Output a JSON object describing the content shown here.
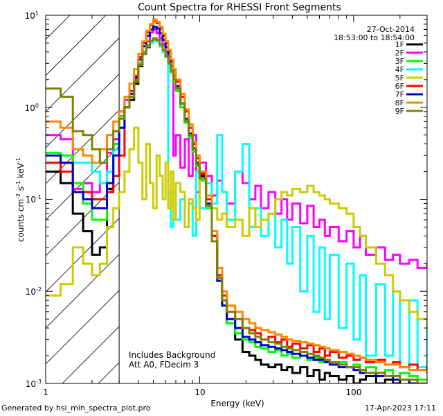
{
  "chart_data": {
    "type": "line",
    "drawstyle": "steps",
    "title": "Count Spectra for RHESSI Front Segments",
    "xlabel": "Energy (keV)",
    "ylabel": "counts cm",
    "ylabel_sup1": "-2",
    "ylabel_mid": " s",
    "ylabel_sup2": "-1",
    "ylabel_end": " keV",
    "ylabel_sup3": "-1",
    "xscale": "log",
    "yscale": "log",
    "xlim": [
      1,
      300
    ],
    "ylim": [
      0.001,
      10
    ],
    "x_tick_labels": [
      "1",
      "10",
      "100"
    ],
    "y_tick_labels": [
      {
        "base": "10",
        "exp": "1"
      },
      {
        "base": "10",
        "exp": "0"
      },
      {
        "base": "10",
        "exp": "-1"
      },
      {
        "base": "10",
        "exp": "-2"
      },
      {
        "base": "10",
        "exp": "-3"
      }
    ],
    "hatched_region_max_kev": 3,
    "date": "27-Oct-2014",
    "time_range": "18:53:00 to 18:54:00",
    "annotation_line1": "Includes Background",
    "annotation_line2": "Att A0, FDecim 3",
    "x": [
      1.0,
      1.25,
      1.5,
      1.75,
      2.0,
      2.25,
      2.5,
      2.75,
      3.0,
      3.25,
      3.5,
      3.75,
      4.0,
      4.25,
      4.5,
      4.75,
      5.0,
      5.25,
      5.5,
      5.75,
      6.0,
      6.25,
      6.5,
      6.75,
      7.0,
      7.5,
      8.0,
      8.5,
      9.0,
      9.5,
      10.0,
      11.0,
      12.0,
      13.0,
      14.0,
      15.0,
      17.0,
      19.0,
      21.0,
      23.0,
      25.0,
      28.0,
      31.0,
      34.0,
      37.0,
      40.0,
      45.0,
      50.0,
      55.0,
      60.0,
      65.0,
      70.0,
      80.0,
      90.0,
      100.0,
      110.0,
      120.0,
      140.0,
      160.0,
      180.0,
      200.0,
      230.0,
      260.0,
      300.0
    ],
    "series": [
      {
        "name": "1F",
        "color": "#000000",
        "values": [
          0.2,
          0.15,
          0.07,
          0.045,
          0.025,
          0.03,
          0.13,
          0.4,
          0.8,
          1.0,
          1.2,
          1.8,
          2.8,
          3.8,
          4.5,
          5.0,
          5.4,
          5.2,
          4.6,
          4.0,
          3.6,
          3.0,
          2.5,
          2.0,
          1.6,
          1.1,
          0.7,
          0.5,
          0.35,
          0.24,
          0.18,
          0.09,
          0.04,
          0.015,
          0.008,
          0.0045,
          0.003,
          0.0022,
          0.002,
          0.0018,
          0.0016,
          0.0015,
          0.0016,
          0.0014,
          0.0015,
          0.0013,
          0.0015,
          0.0012,
          0.0014,
          0.0011,
          0.0013,
          0.0012,
          0.0011,
          0.0012,
          0.001,
          0.0011,
          0.0012,
          0.001,
          0.0011,
          0.001,
          0.0011,
          0.001,
          0.001,
          0.001
        ]
      },
      {
        "name": "2F",
        "color": "#ff00ff",
        "values": [
          0.5,
          0.45,
          0.13,
          0.15,
          0.12,
          0.15,
          0.32,
          0.45,
          0.9,
          1.2,
          1.5,
          2.0,
          3.0,
          4.0,
          5.2,
          6.5,
          7.0,
          6.4,
          5.6,
          4.8,
          4.0,
          3.3,
          2.5,
          0.3,
          0.5,
          0.22,
          0.45,
          0.18,
          0.5,
          0.12,
          0.25,
          0.18,
          0.11,
          0.16,
          0.12,
          0.09,
          0.2,
          0.15,
          0.1,
          0.14,
          0.08,
          0.12,
          0.07,
          0.1,
          0.06,
          0.09,
          0.055,
          0.085,
          0.05,
          0.06,
          0.04,
          0.05,
          0.035,
          0.045,
          0.03,
          0.04,
          0.025,
          0.03,
          0.022,
          0.025,
          0.02,
          0.022,
          0.018,
          0.02
        ]
      },
      {
        "name": "3F",
        "color": "#00ff00",
        "values": [
          0.32,
          0.3,
          0.15,
          0.09,
          0.06,
          0.06,
          0.2,
          0.4,
          0.8,
          1.0,
          1.3,
          1.9,
          3.0,
          3.9,
          4.6,
          5.1,
          5.5,
          5.3,
          4.7,
          4.1,
          3.5,
          2.9,
          2.4,
          1.9,
          1.5,
          1.0,
          0.68,
          0.47,
          0.33,
          0.23,
          0.16,
          0.08,
          0.035,
          0.014,
          0.007,
          0.0045,
          0.0035,
          0.003,
          0.0028,
          0.0025,
          0.0024,
          0.0022,
          0.0023,
          0.002,
          0.0021,
          0.0019,
          0.002,
          0.0018,
          0.0019,
          0.0017,
          0.0018,
          0.0016,
          0.0017,
          0.0015,
          0.0016,
          0.0014,
          0.0015,
          0.0013,
          0.0014,
          0.0012,
          0.0013,
          0.0012,
          0.0011,
          0.0011
        ]
      },
      {
        "name": "4F",
        "color": "#00ffff",
        "values": [
          0.25,
          0.25,
          0.25,
          0.25,
          0.2,
          0.15,
          0.2,
          0.35,
          0.6,
          1.0,
          1.3,
          1.9,
          2.9,
          3.8,
          4.6,
          5.0,
          5.4,
          5.2,
          4.6,
          4.0,
          3.5,
          0.12,
          0.05,
          0.12,
          0.06,
          0.1,
          0.05,
          0.09,
          0.04,
          0.2,
          0.08,
          0.15,
          0.09,
          0.5,
          0.12,
          0.06,
          0.2,
          0.4,
          0.05,
          0.08,
          0.04,
          0.07,
          0.03,
          0.06,
          0.02,
          0.05,
          0.01,
          0.04,
          0.006,
          0.03,
          0.005,
          0.025,
          0.004,
          0.02,
          0.003,
          0.015,
          0.002,
          0.012,
          0.002,
          0.01,
          0.0015,
          0.008,
          0.0015,
          0.005
        ]
      },
      {
        "name": "5F",
        "color": "#cccc00",
        "values": [
          0.009,
          0.012,
          0.03,
          0.02,
          0.015,
          0.02,
          0.05,
          0.08,
          0.12,
          0.2,
          0.35,
          0.6,
          0.25,
          0.1,
          0.4,
          0.15,
          0.08,
          0.3,
          0.18,
          0.1,
          0.25,
          0.08,
          0.2,
          0.06,
          0.15,
          0.12,
          0.05,
          0.1,
          0.08,
          0.06,
          0.2,
          0.1,
          0.08,
          0.06,
          0.07,
          0.05,
          0.06,
          0.04,
          0.08,
          0.05,
          0.06,
          0.07,
          0.1,
          0.12,
          0.11,
          0.13,
          0.12,
          0.14,
          0.12,
          0.11,
          0.1,
          0.09,
          0.08,
          0.07,
          0.05,
          0.04,
          0.03,
          0.02,
          0.015,
          0.01,
          0.008,
          0.006,
          0.005,
          0.004
        ]
      },
      {
        "name": "6F",
        "color": "#ff0000",
        "values": [
          0.25,
          0.2,
          0.12,
          0.12,
          0.1,
          0.1,
          0.12,
          0.18,
          0.3,
          1.0,
          1.5,
          2.2,
          3.5,
          5.0,
          6.5,
          7.8,
          8.6,
          8.2,
          7.2,
          6.0,
          5.0,
          4.0,
          3.2,
          2.5,
          1.9,
          1.3,
          0.9,
          0.6,
          0.4,
          0.28,
          0.19,
          0.1,
          0.04,
          0.015,
          0.009,
          0.006,
          0.005,
          0.004,
          0.0038,
          0.0035,
          0.003,
          0.0032,
          0.0028,
          0.003,
          0.0025,
          0.0027,
          0.0024,
          0.0026,
          0.0022,
          0.0024,
          0.002,
          0.0022,
          0.0019,
          0.002,
          0.0018,
          0.0019,
          0.0017,
          0.0018,
          0.0016,
          0.0017,
          0.0015,
          0.0016,
          0.0014,
          0.0015
        ]
      },
      {
        "name": "7F",
        "color": "#0000cc",
        "values": [
          0.3,
          0.25,
          0.12,
          0.1,
          0.08,
          0.08,
          0.15,
          0.3,
          0.6,
          1.0,
          1.4,
          2.1,
          3.3,
          4.6,
          6.0,
          7.0,
          7.5,
          7.2,
          6.4,
          5.4,
          4.5,
          3.6,
          2.8,
          2.2,
          1.7,
          1.1,
          0.75,
          0.52,
          0.36,
          0.25,
          0.17,
          0.09,
          0.035,
          0.013,
          0.007,
          0.005,
          0.004,
          0.0032,
          0.003,
          0.0028,
          0.0026,
          0.0025,
          0.0024,
          0.0023,
          0.0022,
          0.0021,
          0.002,
          0.0019,
          0.0018,
          0.0018,
          0.0017,
          0.0016,
          0.0015,
          0.0015,
          0.0014,
          0.0013,
          0.0013,
          0.0012,
          0.0012,
          0.0011,
          0.0011,
          0.001,
          0.001,
          0.001
        ]
      },
      {
        "name": "8F",
        "color": "#ff8800",
        "values": [
          0.7,
          0.6,
          0.35,
          0.3,
          0.25,
          0.35,
          0.5,
          0.7,
          0.9,
          1.3,
          1.8,
          2.6,
          3.8,
          5.2,
          6.8,
          8.0,
          9.0,
          8.5,
          7.5,
          6.3,
          5.2,
          4.2,
          3.3,
          2.6,
          2.0,
          1.4,
          0.95,
          0.65,
          0.42,
          0.3,
          0.2,
          0.11,
          0.045,
          0.018,
          0.01,
          0.007,
          0.006,
          0.005,
          0.0045,
          0.004,
          0.0038,
          0.0036,
          0.0034,
          0.0032,
          0.003,
          0.0029,
          0.0028,
          0.0027,
          0.0026,
          0.0025,
          0.0024,
          0.0023,
          0.0022,
          0.0021,
          0.002,
          0.0019,
          0.0018,
          0.0017,
          0.0016,
          0.0016,
          0.0015,
          0.0014,
          0.0014,
          0.0013
        ]
      },
      {
        "name": "9F",
        "color": "#808000",
        "values": [
          1.6,
          1.3,
          0.55,
          0.5,
          0.35,
          0.25,
          0.35,
          0.55,
          0.75,
          1.0,
          1.3,
          1.9,
          2.9,
          3.8,
          4.7,
          5.3,
          5.6,
          5.4,
          4.8,
          4.2,
          3.6,
          3.0,
          2.5,
          2.0,
          1.6,
          1.1,
          0.72,
          0.5,
          0.35,
          0.24,
          0.17,
          0.085,
          0.035,
          0.014,
          0.008,
          0.006,
          0.005,
          0.004,
          0.0035,
          0.0032,
          0.003,
          0.0028,
          0.0027,
          0.0025,
          0.0024,
          0.0023,
          0.0022,
          0.0021,
          0.002,
          0.0019,
          0.0018,
          0.0017,
          0.0016,
          0.0015,
          0.0015,
          0.0014,
          0.0013,
          0.0013,
          0.0012,
          0.0012,
          0.0011,
          0.0011,
          0.001,
          0.001
        ]
      }
    ]
  },
  "footer": {
    "generated_by": "Generated by hsi_min_spectra_plot.pro",
    "timestamp": "17-Apr-2023 17:11"
  }
}
